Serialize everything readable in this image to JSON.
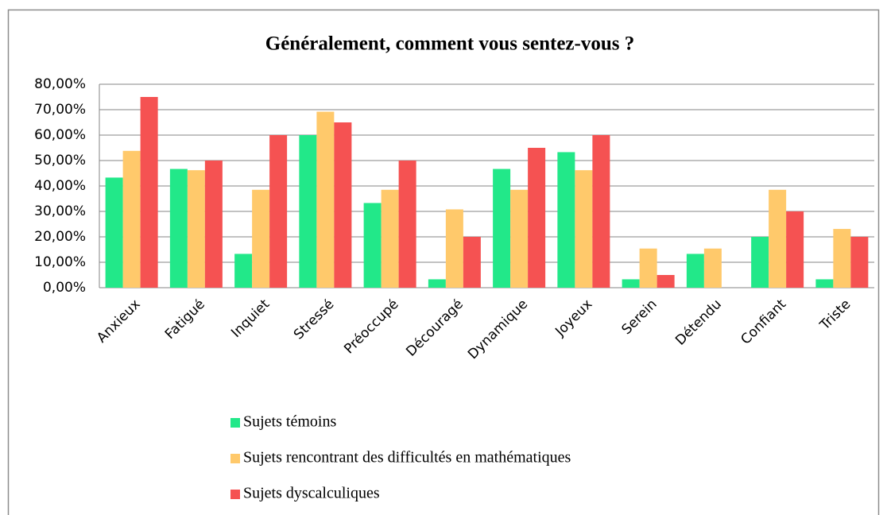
{
  "chart_data": {
    "type": "bar",
    "title": "Généralement, comment vous sentez-vous ?",
    "categories": [
      "Anxieux",
      "Fatigué",
      "Inquiet",
      "Stressé",
      "Préoccupé",
      "Découragé",
      "Dynamique",
      "Joyeux",
      "Serein",
      "Détendu",
      "Confiant",
      "Triste"
    ],
    "series": [
      {
        "name": "Sujets témoins",
        "color": "#22e889",
        "values": [
          43.3,
          46.7,
          13.3,
          60,
          33.3,
          3.3,
          46.7,
          53.3,
          3.3,
          13.3,
          20,
          3.3
        ]
      },
      {
        "name": "Sujets rencontrant des difficultés en mathématiques",
        "color": "#ffc96b",
        "values": [
          53.8,
          46.2,
          38.5,
          69.2,
          38.5,
          30.8,
          38.5,
          46.2,
          15.4,
          15.4,
          38.5,
          23.1
        ]
      },
      {
        "name": "Sujets dyscalculiques",
        "color": "#f55252",
        "values": [
          75,
          50,
          60,
          65,
          50,
          20,
          55,
          60,
          5,
          0,
          30,
          20
        ]
      }
    ],
    "ylim": [
      0,
      80
    ],
    "yticks": [
      {
        "value": 0,
        "label": "0,00%"
      },
      {
        "value": 10,
        "label": "10,00%"
      },
      {
        "value": 20,
        "label": "20,00%"
      },
      {
        "value": 30,
        "label": "30,00%"
      },
      {
        "value": 40,
        "label": "40,00%"
      },
      {
        "value": 50,
        "label": "50,00%"
      },
      {
        "value": 60,
        "label": "60,00%"
      },
      {
        "value": 70,
        "label": "70,00%"
      },
      {
        "value": 80,
        "label": "80,00%"
      }
    ],
    "grid": true,
    "legend": "bottom"
  }
}
